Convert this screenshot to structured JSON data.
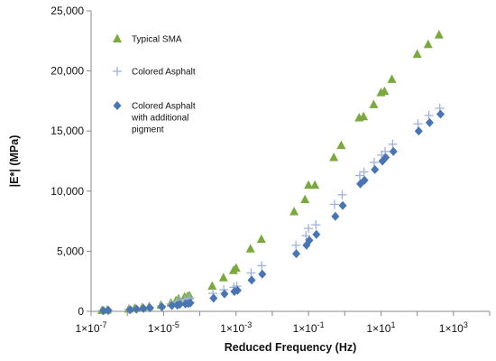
{
  "chart_data": {
    "type": "scatter",
    "title": "",
    "xlabel": "Reduced Frequency (Hz)",
    "ylabel": "|E*| (MPa)",
    "x_scale": "log",
    "xlim": [
      1e-07,
      10000.0
    ],
    "ylim": [
      0,
      25000
    ],
    "x_ticks": [
      {
        "value": 1e-07,
        "mant": "1×10",
        "exp": "-7"
      },
      {
        "value": 1e-05,
        "mant": "1×10",
        "exp": "-5"
      },
      {
        "value": 0.001,
        "mant": "1×10",
        "exp": "-3"
      },
      {
        "value": 0.1,
        "mant": "1×10",
        "exp": "-1"
      },
      {
        "value": 10.0,
        "mant": "1×10",
        "exp": "1"
      },
      {
        "value": 1000.0,
        "mant": "1×10",
        "exp": "3"
      }
    ],
    "y_ticks": [
      {
        "value": 0,
        "label": "0"
      },
      {
        "value": 5000,
        "label": "5,000"
      },
      {
        "value": 10000,
        "label": "10,000"
      },
      {
        "value": 15000,
        "label": "15,000"
      },
      {
        "value": 20000,
        "label": "20,000"
      },
      {
        "value": 25000,
        "label": "25,000"
      }
    ],
    "grid": false,
    "legend_position": "top-left inside",
    "series": [
      {
        "name": "Typical SMA",
        "marker": "triangle",
        "color": "#7aaa3c",
        "points": [
          [
            2e-07,
            80
          ],
          [
            2.8e-07,
            110
          ],
          [
            1.1e-06,
            200
          ],
          [
            1.6e-06,
            250
          ],
          [
            2.6e-06,
            330
          ],
          [
            4e-06,
            400
          ],
          [
            8.5e-06,
            520
          ],
          [
            1.6e-05,
            700
          ],
          [
            2.2e-05,
            900
          ],
          [
            2.6e-05,
            1050
          ],
          [
            3.8e-05,
            1200
          ],
          [
            4.6e-05,
            1250
          ],
          [
            5.2e-05,
            1300
          ],
          [
            0.00022,
            2100
          ],
          [
            0.00045,
            2800
          ],
          [
            0.00085,
            3400
          ],
          [
            0.001,
            3600
          ],
          [
            0.0025,
            5200
          ],
          [
            0.005,
            6000
          ],
          [
            0.04,
            8300
          ],
          [
            0.08,
            9300
          ],
          [
            0.1,
            10500
          ],
          [
            0.15,
            10500
          ],
          [
            0.5,
            12800
          ],
          [
            0.8,
            13800
          ],
          [
            2.5,
            16100
          ],
          [
            3.3,
            16200
          ],
          [
            6.3,
            17200
          ],
          [
            10.0,
            18200
          ],
          [
            12.5,
            18300
          ],
          [
            20.0,
            19300
          ],
          [
            100,
            21400
          ],
          [
            200,
            22200
          ],
          [
            400,
            23000
          ]
        ]
      },
      {
        "name": "Colored Asphalt",
        "marker": "plus",
        "color": "#9fb2dc",
        "points": [
          [
            2.1e-07,
            70
          ],
          [
            2.9e-07,
            90
          ],
          [
            1.1e-06,
            170
          ],
          [
            1.7e-06,
            220
          ],
          [
            2.7e-06,
            280
          ],
          [
            4.1e-06,
            340
          ],
          [
            8.7e-06,
            450
          ],
          [
            1.6e-05,
            620
          ],
          [
            2.3e-05,
            790
          ],
          [
            2.7e-05,
            900
          ],
          [
            3.9e-05,
            1000
          ],
          [
            4.7e-05,
            1080
          ],
          [
            5.3e-05,
            1100
          ],
          [
            0.00023,
            1500
          ],
          [
            0.00046,
            1800
          ],
          [
            0.00087,
            2000
          ],
          [
            0.00105,
            2100
          ],
          [
            0.0026,
            3200
          ],
          [
            0.0051,
            3800
          ],
          [
            0.045,
            5500
          ],
          [
            0.085,
            6300
          ],
          [
            0.1,
            6900
          ],
          [
            0.16,
            7200
          ],
          [
            0.52,
            8900
          ],
          [
            0.85,
            9700
          ],
          [
            2.6,
            11300
          ],
          [
            3.4,
            11600
          ],
          [
            6.5,
            12400
          ],
          [
            10.5,
            13000
          ],
          [
            13.0,
            13300
          ],
          [
            21.0,
            13900
          ],
          [
            105,
            15600
          ],
          [
            210,
            16300
          ],
          [
            420,
            16900
          ]
        ]
      },
      {
        "name": "Colored Asphalt\nwith additional\npigment",
        "marker": "diamond",
        "color": "#4a75b5",
        "points": [
          [
            2.2e-07,
            60
          ],
          [
            3e-07,
            80
          ],
          [
            1.2e-06,
            140
          ],
          [
            1.8e-06,
            190
          ],
          [
            2.8e-06,
            240
          ],
          [
            4.2e-06,
            290
          ],
          [
            9e-06,
            380
          ],
          [
            1.7e-05,
            480
          ],
          [
            2.4e-05,
            520
          ],
          [
            2.8e-05,
            580
          ],
          [
            4e-05,
            620
          ],
          [
            4.8e-05,
            650
          ],
          [
            5.5e-05,
            700
          ],
          [
            0.00024,
            1100
          ],
          [
            0.00048,
            1450
          ],
          [
            0.0009,
            1650
          ],
          [
            0.0011,
            1750
          ],
          [
            0.0027,
            2600
          ],
          [
            0.0053,
            3100
          ],
          [
            0.046,
            4800
          ],
          [
            0.088,
            5500
          ],
          [
            0.105,
            5900
          ],
          [
            0.165,
            6400
          ],
          [
            0.55,
            7900
          ],
          [
            0.88,
            8800
          ],
          [
            2.7,
            10600
          ],
          [
            3.5,
            10900
          ],
          [
            6.8,
            11800
          ],
          [
            11.0,
            12500
          ],
          [
            13.5,
            12800
          ],
          [
            22.0,
            13300
          ],
          [
            110,
            15000
          ],
          [
            220,
            15700
          ],
          [
            440,
            16400
          ]
        ]
      }
    ]
  }
}
